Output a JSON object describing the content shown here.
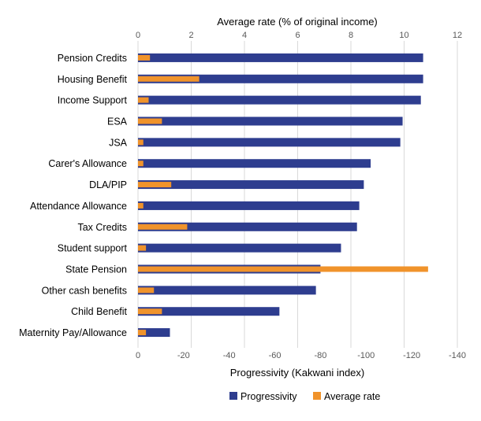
{
  "chart_data": {
    "type": "bar",
    "orientation": "horizontal",
    "categories": [
      "Pension Credits",
      "Housing Benefit",
      "Income Support",
      "ESA",
      "JSA",
      "Carer's Allowance",
      "DLA/PIP",
      "Attendance Allowance",
      "Tax Credits",
      "Student support",
      "State Pension",
      "Other cash benefits",
      "Child Benefit",
      "Maternity Pay/Allowance"
    ],
    "series": [
      {
        "name": "Progressivity",
        "axis": "bottom",
        "color": "#2e3d8f",
        "values": [
          -125,
          -125,
          -124,
          -116,
          -115,
          -102,
          -99,
          -97,
          -96,
          -89,
          -80,
          -78,
          -62,
          -14
        ]
      },
      {
        "name": "Average rate",
        "axis": "top",
        "color": "#f0932b",
        "values": [
          0.45,
          2.3,
          0.4,
          0.9,
          0.2,
          0.2,
          1.25,
          0.2,
          1.85,
          0.3,
          10.9,
          0.6,
          0.9,
          0.3
        ]
      }
    ],
    "x_bottom": {
      "label": "Progressivity (Kakwani index)",
      "range": [
        0,
        -140
      ],
      "ticks": [
        "0",
        "-20",
        "-40",
        "-60",
        "-80",
        "-100",
        "-120",
        "-140"
      ]
    },
    "x_top": {
      "label": "Average rate (% of original income)",
      "range": [
        0,
        12
      ],
      "ticks": [
        "0",
        "2",
        "4",
        "6",
        "8",
        "10",
        "12"
      ]
    },
    "grid": true,
    "legend_position": "bottom"
  }
}
